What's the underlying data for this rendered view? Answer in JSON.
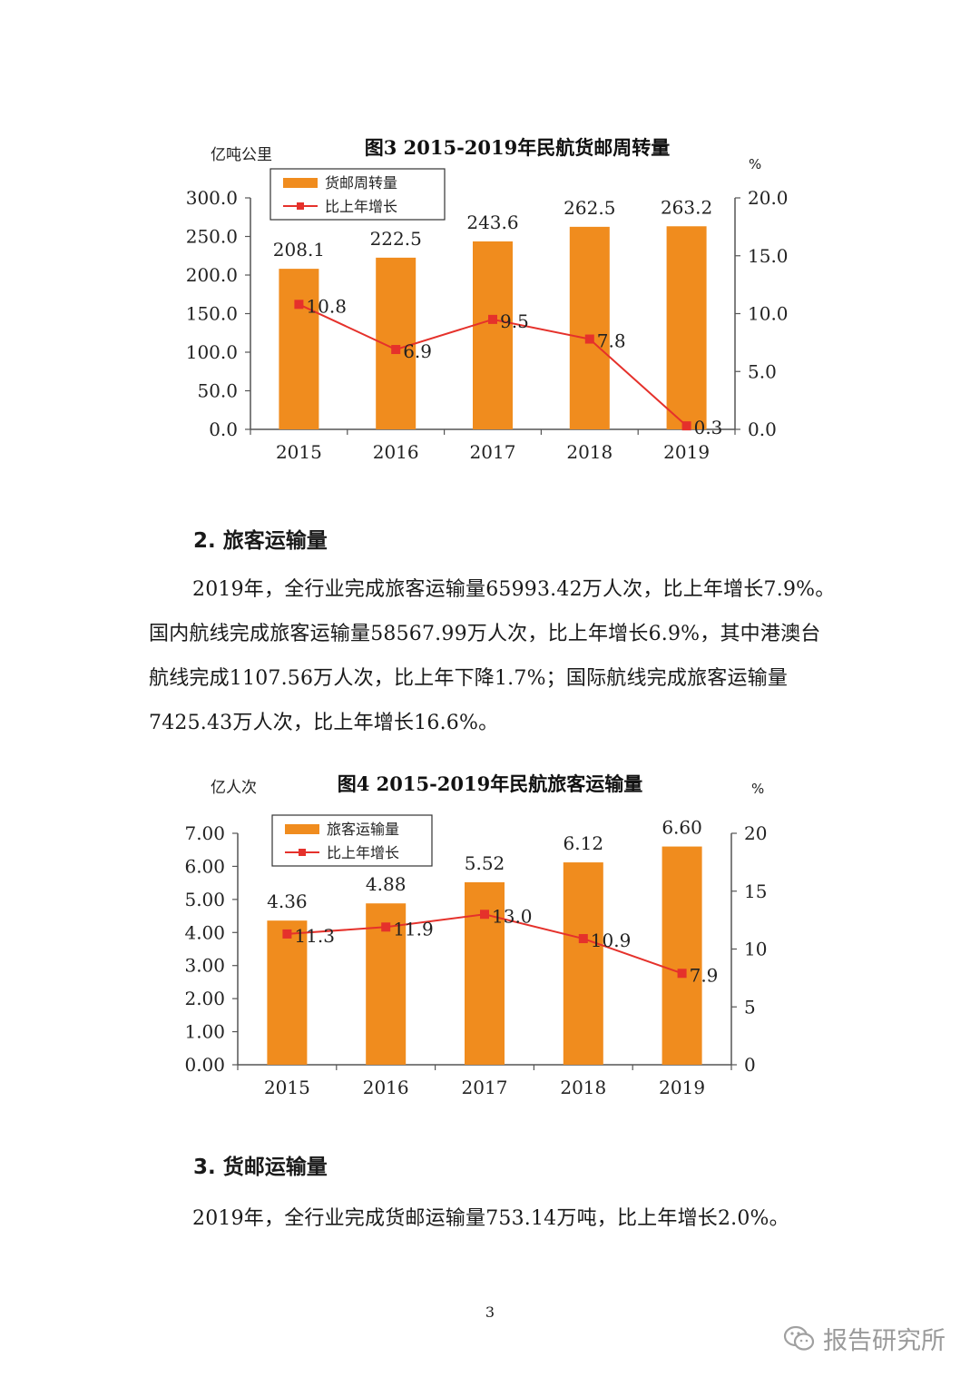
{
  "charts": [
    {
      "id": "chart3",
      "type": "bar",
      "title": "图3 2015-2019年民航货邮周转量",
      "left_unit": "亿吨公里",
      "right_unit": "%",
      "categories": [
        "2015",
        "2016",
        "2017",
        "2018",
        "2019"
      ],
      "left_ticks": [
        "0.0",
        "50.0",
        "100.0",
        "150.0",
        "200.0",
        "250.0",
        "300.0"
      ],
      "right_ticks": [
        "0.0",
        "5.0",
        "10.0",
        "15.0",
        "20.0"
      ],
      "ylim": [
        0,
        300
      ],
      "y2lim": [
        0,
        20
      ],
      "series": [
        {
          "name": "货邮周转量",
          "kind": "bar",
          "values": [
            208.1,
            222.5,
            243.6,
            262.5,
            263.2
          ],
          "labels": [
            "208.1",
            "222.5",
            "243.6",
            "262.5",
            "263.2"
          ],
          "color": "#F08C1E"
        },
        {
          "name": "比上年增长",
          "kind": "line",
          "axis": "right",
          "values": [
            10.8,
            6.9,
            9.5,
            7.8,
            0.3
          ],
          "labels": [
            "10.8",
            "6.9",
            "9.5",
            "7.8",
            "0.3"
          ],
          "color": "#E5312B"
        }
      ],
      "legend_position": "top-left"
    },
    {
      "id": "chart4",
      "type": "bar",
      "title": "图4 2015-2019年民航旅客运输量",
      "left_unit": "亿人次",
      "right_unit": "%",
      "categories": [
        "2015",
        "2016",
        "2017",
        "2018",
        "2019"
      ],
      "left_ticks": [
        "0.00",
        "1.00",
        "2.00",
        "3.00",
        "4.00",
        "5.00",
        "6.00",
        "7.00"
      ],
      "right_ticks": [
        "0",
        "5",
        "10",
        "15",
        "20"
      ],
      "ylim": [
        0,
        7
      ],
      "y2lim": [
        0,
        20
      ],
      "series": [
        {
          "name": "旅客运输量",
          "kind": "bar",
          "values": [
            4.36,
            4.88,
            5.52,
            6.12,
            6.6
          ],
          "labels": [
            "4.36",
            "4.88",
            "5.52",
            "6.12",
            "6.60"
          ],
          "color": "#F08C1E"
        },
        {
          "name": "比上年增长",
          "kind": "line",
          "axis": "right",
          "values": [
            11.3,
            11.9,
            13.0,
            10.9,
            7.9
          ],
          "labels": [
            "11.3",
            "11.9",
            "13.0",
            "10.9",
            "7.9"
          ],
          "color": "#E5312B"
        }
      ],
      "legend_position": "top-left"
    }
  ],
  "section2": {
    "heading": "2. 旅客运输量",
    "paragraph": "2019年，全行业完成旅客运输量65993.42万人次，比上年增长7.9%。国内航线完成旅客运输量58567.99万人次，比上年增长6.9%，其中港澳台航线完成1107.56万人次，比上年下降1.7%；国际航线完成旅客运输量7425.43万人次，比上年增长16.6%。"
  },
  "section3": {
    "heading": "3. 货邮运输量",
    "paragraph": "2019年，全行业完成货邮运输量753.14万吨，比上年增长2.0%。"
  },
  "page_number": "3",
  "watermark": {
    "text": "报告研究所",
    "icon": "wechat-icon"
  }
}
